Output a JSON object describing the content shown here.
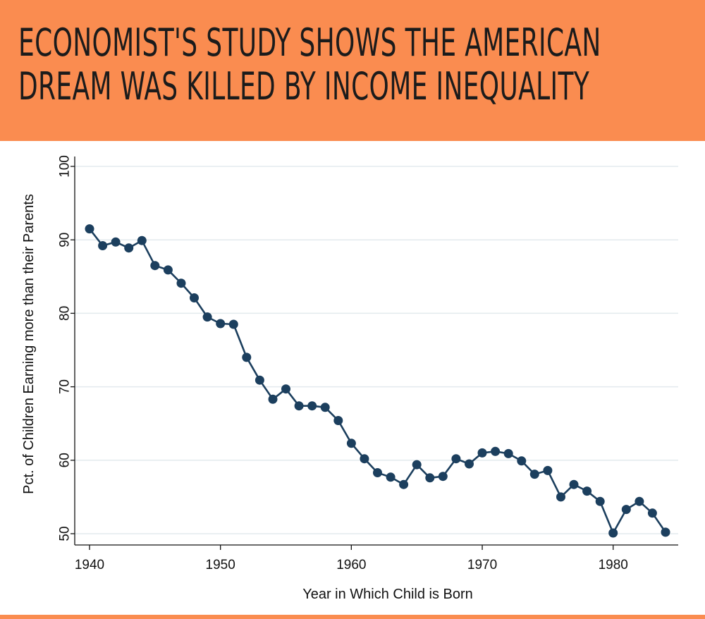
{
  "headline": {
    "line1": "ECONOMIST'S STUDY SHOWS THE AMERICAN",
    "line2": "DREAM WAS KILLED BY INCOME INEQUALITY"
  },
  "colors": {
    "banner": "#fa8c50",
    "series": "#1c3f5e",
    "grid": "#e3eaee"
  },
  "chart_data": {
    "type": "line",
    "title": "",
    "xlabel": "Year in Which Child is Born",
    "ylabel": "Pct. of Children Earning more than their Parents",
    "xlim": [
      1940,
      1984
    ],
    "ylim": [
      50,
      100
    ],
    "xticks": [
      1940,
      1950,
      1960,
      1970,
      1980
    ],
    "yticks": [
      50,
      60,
      70,
      80,
      90,
      100
    ],
    "grid": true,
    "markers": true,
    "x": [
      1940,
      1941,
      1942,
      1943,
      1944,
      1945,
      1946,
      1947,
      1948,
      1949,
      1950,
      1951,
      1952,
      1953,
      1954,
      1955,
      1956,
      1957,
      1958,
      1959,
      1960,
      1961,
      1962,
      1963,
      1964,
      1965,
      1966,
      1967,
      1968,
      1969,
      1970,
      1971,
      1972,
      1973,
      1974,
      1975,
      1976,
      1977,
      1978,
      1979,
      1980,
      1981,
      1982,
      1983,
      1984
    ],
    "y": [
      91.5,
      89.2,
      89.7,
      88.9,
      89.9,
      86.5,
      85.9,
      84.1,
      82.1,
      79.5,
      78.6,
      78.5,
      74.0,
      70.9,
      68.3,
      69.7,
      67.4,
      67.4,
      67.2,
      65.4,
      62.3,
      60.2,
      58.3,
      57.7,
      56.7,
      59.4,
      57.6,
      57.8,
      60.2,
      59.5,
      61.0,
      61.2,
      60.9,
      59.9,
      58.1,
      58.6,
      55.0,
      56.7,
      55.8,
      54.4,
      50.1,
      53.3,
      54.4,
      52.8,
      50.2
    ]
  }
}
